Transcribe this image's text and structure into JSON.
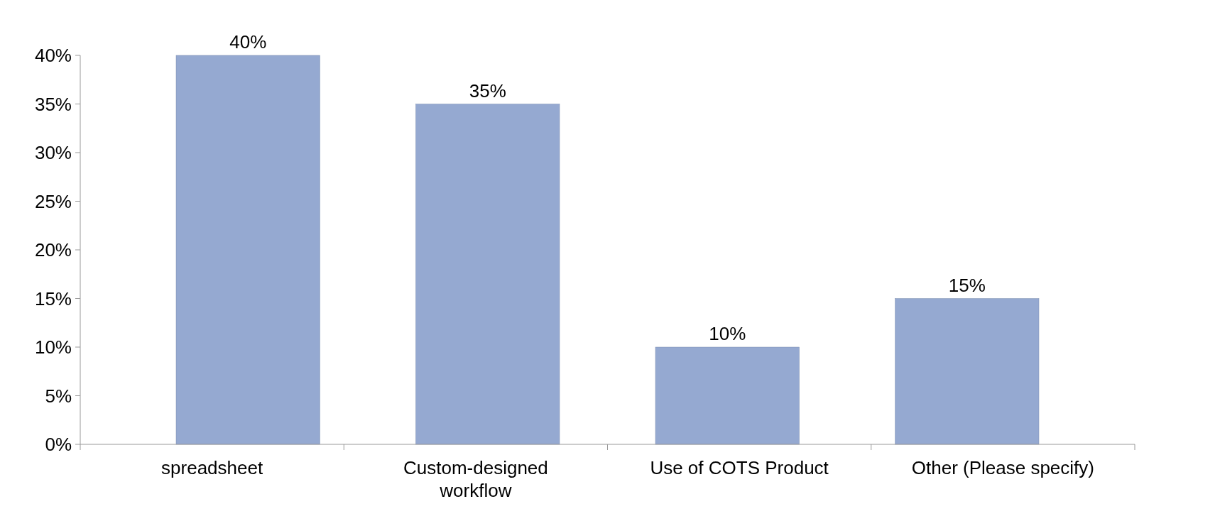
{
  "chart_data": {
    "type": "bar",
    "categories": [
      "spreadsheet",
      "Custom-designed workflow",
      "Use of COTS Product",
      "Other (Please specify)"
    ],
    "values": [
      40,
      35,
      10,
      15
    ],
    "color": "#95a9d1",
    "value_labels": [
      "40%",
      "35%",
      "10%",
      "15%"
    ],
    "ylim": [
      0,
      40
    ],
    "yticks": [
      {
        "value": 0,
        "label": "0%"
      },
      {
        "value": 5,
        "label": "5%"
      },
      {
        "value": 10,
        "label": "10%"
      },
      {
        "value": 15,
        "label": "15%"
      },
      {
        "value": 20,
        "label": "20%"
      },
      {
        "value": 25,
        "label": "25%"
      },
      {
        "value": 30,
        "label": "30%"
      },
      {
        "value": 35,
        "label": "35%"
      },
      {
        "value": 40,
        "label": "40%"
      }
    ],
    "grid": false
  }
}
